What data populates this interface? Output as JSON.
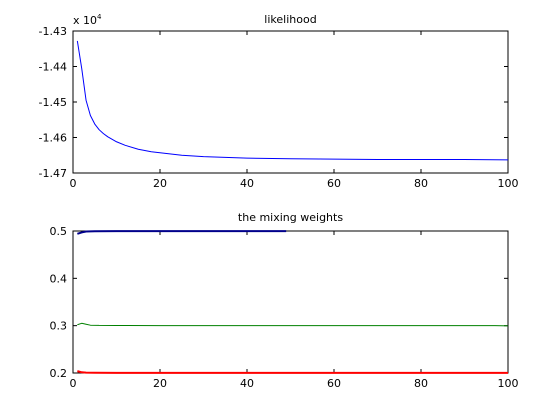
{
  "chart_data": [
    {
      "type": "line",
      "title": "likelihood",
      "xlabel": "",
      "ylabel": "",
      "y_exponent_label": "x 10",
      "y_exponent_power": "4",
      "xlim": [
        0,
        100
      ],
      "ylim": [
        -1.47,
        -1.43
      ],
      "xticks": [
        0,
        20,
        40,
        60,
        80,
        100
      ],
      "yticks": [
        -1.47,
        -1.46,
        -1.45,
        -1.44,
        -1.43
      ],
      "ytick_labels": [
        "-1.47",
        "-1.46",
        "-1.45",
        "-1.44",
        "-1.43"
      ],
      "grid": false,
      "series": [
        {
          "color": "#0000ff",
          "x": [
            1,
            2,
            3,
            4,
            5,
            6,
            7,
            8,
            10,
            12,
            15,
            18,
            20,
            25,
            30,
            35,
            40,
            50,
            60,
            70,
            80,
            90,
            100
          ],
          "y": [
            -1.4328,
            -1.4405,
            -1.4495,
            -1.4538,
            -1.4562,
            -1.4578,
            -1.4589,
            -1.4598,
            -1.4612,
            -1.4622,
            -1.4633,
            -1.464,
            -1.4643,
            -1.465,
            -1.4654,
            -1.4656,
            -1.4658,
            -1.466,
            -1.4661,
            -1.4662,
            -1.4662,
            -1.4662,
            -1.4663
          ]
        }
      ]
    },
    {
      "type": "line",
      "title": "the mixing weights",
      "xlabel": "",
      "ylabel": "",
      "xlim": [
        0,
        100
      ],
      "ylim": [
        0.2,
        0.5
      ],
      "xticks": [
        0,
        20,
        40,
        60,
        80,
        100
      ],
      "yticks": [
        0.2,
        0.3,
        0.4,
        0.5
      ],
      "ytick_labels": [
        "0.2",
        "0.3",
        "0.4",
        "0.5"
      ],
      "grid": false,
      "series": [
        {
          "color": "#00008b",
          "x": [
            1,
            2,
            3,
            5,
            10,
            20,
            30,
            40,
            49
          ],
          "y": [
            0.494,
            0.497,
            0.499,
            0.4995,
            0.4997,
            0.4998,
            0.4998,
            0.4998,
            0.4998
          ]
        },
        {
          "color": "#008000",
          "x": [
            1,
            2,
            3,
            4,
            6,
            10,
            20,
            40,
            60,
            80,
            97,
            100
          ],
          "y": [
            0.302,
            0.305,
            0.303,
            0.301,
            0.3005,
            0.3003,
            0.3002,
            0.3002,
            0.3001,
            0.3001,
            0.3001,
            0.2995
          ]
        },
        {
          "color": "#ff0000",
          "x": [
            1,
            2,
            3,
            5,
            10,
            20,
            40,
            60,
            80,
            100
          ],
          "y": [
            0.204,
            0.2015,
            0.2008,
            0.2005,
            0.2003,
            0.2002,
            0.2002,
            0.2002,
            0.2002,
            0.2002
          ]
        }
      ]
    }
  ]
}
